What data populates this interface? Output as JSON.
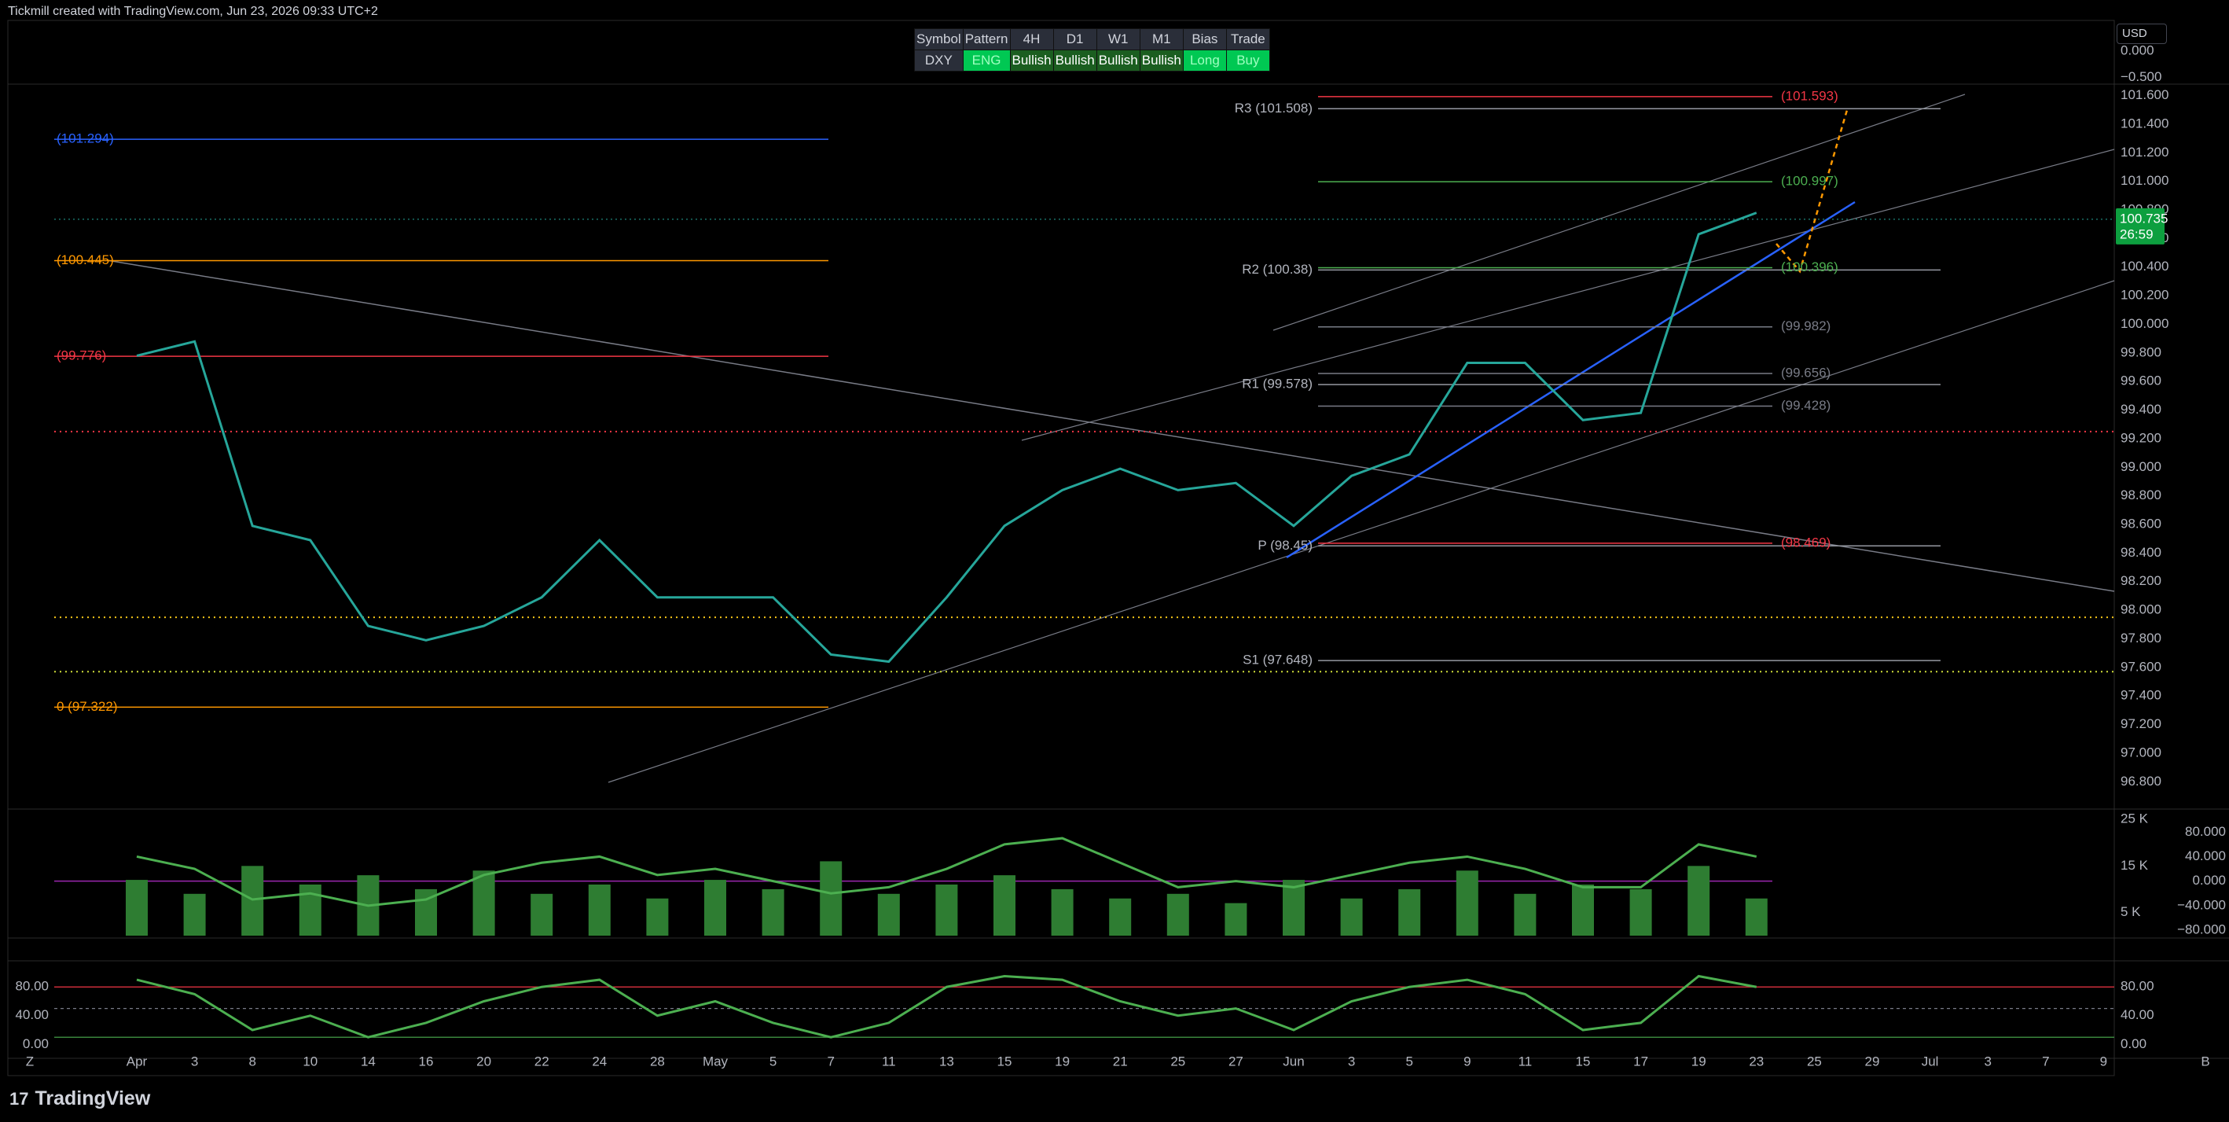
{
  "header": {
    "title": "Tickmill created with TradingView.com, Jun 23, 2026 09:33 UTC+2"
  },
  "table": {
    "header": [
      "Symbol",
      "Pattern",
      "4H",
      "D1",
      "W1",
      "M1",
      "Bias",
      "Trade"
    ],
    "rows": [
      [
        "DXY",
        "ENG",
        "Bullish",
        "Bullish",
        "Bullish",
        "Bullish",
        "Long",
        "Buy"
      ]
    ]
  },
  "top_pane": {
    "unit": "USD",
    "ylim": [
      -0.6,
      0.59
    ],
    "yticks": [
      {
        "value": 0,
        "label": "0.000"
      },
      {
        "value": -0.5,
        "label": "−0.500"
      }
    ]
  },
  "chart_data": [
    {
      "type": "line",
      "categories": [
        "Apr",
        "3",
        "8",
        "10",
        "14",
        "16",
        "20",
        "22",
        "24",
        "28",
        "May",
        "5",
        "7",
        "11",
        "13",
        "15",
        "19",
        "21",
        "25",
        "27",
        "Jun",
        "3",
        "5",
        "9",
        "11",
        "15",
        "17",
        "19",
        "23",
        "25",
        "29",
        "Jul",
        "3",
        "7",
        "9"
      ],
      "values": [
        99.78,
        99.88,
        98.59,
        98.49,
        97.89,
        97.79,
        97.89,
        98.09,
        98.49,
        98.09,
        98.09,
        98.09,
        97.69,
        97.64,
        98.09,
        98.59,
        98.84,
        98.99,
        98.84,
        98.89,
        98.59,
        98.94,
        99.09,
        99.73,
        99.73,
        99.33,
        99.38,
        100.63,
        100.78,
        null,
        null,
        null,
        null,
        null,
        null
      ],
      "color": "#26a69a",
      "ylim": [
        96.62,
        101.68
      ],
      "yticks": [
        {
          "value": 96.8,
          "label": "96.800"
        },
        {
          "value": 97,
          "label": "97.000"
        },
        {
          "value": 97.2,
          "label": "97.200"
        },
        {
          "value": 97.4,
          "label": "97.400"
        },
        {
          "value": 97.6,
          "label": "97.600"
        },
        {
          "value": 97.8,
          "label": "97.800"
        },
        {
          "value": 98,
          "label": "98.000"
        },
        {
          "value": 98.2,
          "label": "98.200"
        },
        {
          "value": 98.4,
          "label": "98.400"
        },
        {
          "value": 98.6,
          "label": "98.600"
        },
        {
          "value": 98.8,
          "label": "98.800"
        },
        {
          "value": 99,
          "label": "99.000"
        },
        {
          "value": 99.2,
          "label": "99.200"
        },
        {
          "value": 99.4,
          "label": "99.400"
        },
        {
          "value": 99.6,
          "label": "99.600"
        },
        {
          "value": 99.8,
          "label": "99.800"
        },
        {
          "value": 100,
          "label": "100.000"
        },
        {
          "value": 100.2,
          "label": "100.200"
        },
        {
          "value": 100.4,
          "label": "100.400"
        },
        {
          "value": 100.6,
          "label": "100.600"
        },
        {
          "value": 100.8,
          "label": "100.800"
        },
        {
          "value": 101,
          "label": "101.000"
        },
        {
          "value": 101.2,
          "label": "101.200"
        },
        {
          "value": 101.4,
          "label": "101.400"
        },
        {
          "value": 101.6,
          "label": "101.600"
        }
      ],
      "price_label": {
        "value": 100.735,
        "label": "100.735"
      },
      "countdown": "26:59",
      "pivots": [
        {
          "label": "R3 (101.508)",
          "value": 101.508
        },
        {
          "label": "R2 (100.38)",
          "value": 100.38
        },
        {
          "label": "R1 (99.578)",
          "value": 99.578
        },
        {
          "label": "P (98.45)",
          "value": 98.45
        },
        {
          "label": "S1 (97.648)",
          "value": 97.648
        }
      ],
      "levels": [
        {
          "label": "(101.593)",
          "value": 101.593,
          "color": "#f23645",
          "side": "right"
        },
        {
          "label": "(100.997)",
          "value": 100.997,
          "color": "#4caf50",
          "side": "right"
        },
        {
          "label": "(100.396)",
          "value": 100.396,
          "color": "#4caf50",
          "side": "right"
        },
        {
          "label": "(99.982)",
          "value": 99.982,
          "color": "#787b86",
          "side": "right"
        },
        {
          "label": "(99.656)",
          "value": 99.656,
          "color": "#787b86",
          "side": "right"
        },
        {
          "label": "(99.428)",
          "value": 99.428,
          "color": "#787b86",
          "side": "right"
        },
        {
          "label": "(98.469)",
          "value": 98.469,
          "color": "#f23645",
          "side": "right"
        },
        {
          "label": "(101.294)",
          "value": 101.294,
          "color": "#2962ff",
          "side": "left"
        },
        {
          "label": "(100.445)",
          "value": 100.445,
          "color": "#ff9800",
          "side": "left"
        },
        {
          "label": "(99.776)",
          "value": 99.776,
          "color": "#f23645",
          "side": "left"
        },
        {
          "label": "0 (97.322)",
          "value": 97.322,
          "color": "#ff9800",
          "side": "left"
        }
      ],
      "dotted_levels": [
        {
          "value": 99.25,
          "color": "#f23645"
        },
        {
          "value": 97.95,
          "color": "#f5c518"
        },
        {
          "value": 97.57,
          "color": "#cddc39"
        }
      ]
    },
    {
      "type": "bar",
      "series": [
        {
          "values": [
            12000,
            9000,
            15000,
            11000,
            13000,
            10000,
            14000,
            9000,
            11000,
            8000,
            12000,
            10000,
            16000,
            9000,
            11000,
            13000,
            10000,
            8000,
            9000,
            7000,
            12000,
            8000,
            10000,
            14000,
            9000,
            11000,
            10000,
            15000,
            8000,
            null,
            null,
            null,
            null,
            null,
            null
          ],
          "color": "#2e7d32"
        },
        {
          "values": [
            40,
            20,
            -30,
            -20,
            -40,
            -30,
            10,
            30,
            40,
            10,
            20,
            0,
            -20,
            -10,
            20,
            60,
            70,
            30,
            -10,
            0,
            -10,
            10,
            30,
            40,
            20,
            -10,
            -10,
            60,
            40,
            null,
            null,
            null,
            null,
            null,
            null
          ],
          "color": "#4caf50",
          "axis": "y2"
        }
      ],
      "ylim": [
        0,
        26900
      ],
      "yticks": [
        {
          "value": 5000,
          "label": "5 K"
        },
        {
          "value": 15000,
          "label": "15 K"
        },
        {
          "value": 25000,
          "label": "25 K"
        }
      ],
      "y2lim": [
        -89,
        115
      ],
      "y2ticks": [
        {
          "value": 80,
          "label": "80.000"
        },
        {
          "value": 40,
          "label": "40.000"
        },
        {
          "value": 0,
          "label": "0.000"
        },
        {
          "value": -40,
          "label": "−40.000"
        },
        {
          "value": -80,
          "label": "−80.000"
        }
      ]
    },
    {
      "type": "line",
      "values": [
        90,
        70,
        20,
        40,
        10,
        30,
        60,
        80,
        90,
        40,
        60,
        30,
        10,
        30,
        80,
        95,
        90,
        60,
        40,
        50,
        20,
        60,
        80,
        90,
        70,
        20,
        30,
        95,
        80,
        null,
        null,
        null,
        null,
        null,
        null
      ],
      "color": "#4caf50",
      "ylim": [
        -15,
        112
      ],
      "yticks": [
        {
          "value": 80,
          "label": "80.00"
        },
        {
          "value": 40,
          "label": "40.00"
        },
        {
          "value": 0,
          "label": "0.00"
        }
      ],
      "hlines": [
        {
          "value": 80,
          "color": "#f23645"
        },
        {
          "value": 50,
          "color": "#787b86"
        },
        {
          "value": 10,
          "color": "#4caf50"
        }
      ]
    }
  ],
  "footer": {
    "brand": "TradingView"
  }
}
